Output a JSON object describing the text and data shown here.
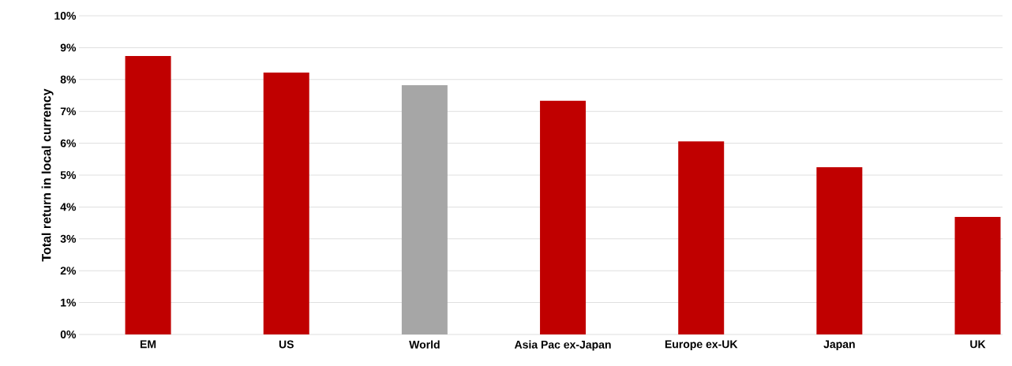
{
  "chart_data": {
    "type": "bar",
    "ylabel": "Total return in local currency",
    "categories": [
      "EM",
      "US",
      "World",
      "Asia Pac ex-Japan",
      "Europe ex-UK",
      "Japan",
      "UK"
    ],
    "values": [
      8.74,
      8.22,
      7.82,
      7.33,
      6.06,
      5.25,
      3.69
    ],
    "colors": [
      "#c00000",
      "#c00000",
      "#a6a6a6",
      "#c00000",
      "#c00000",
      "#c00000",
      "#c00000"
    ],
    "ylim": [
      0,
      10
    ],
    "yticks": [
      {
        "value": 0,
        "label": "0%"
      },
      {
        "value": 1,
        "label": "1%"
      },
      {
        "value": 2,
        "label": "2%"
      },
      {
        "value": 3,
        "label": "3%"
      },
      {
        "value": 4,
        "label": "4%"
      },
      {
        "value": 5,
        "label": "5%"
      },
      {
        "value": 6,
        "label": "6%"
      },
      {
        "value": 7,
        "label": "7%"
      },
      {
        "value": 8,
        "label": "8%"
      },
      {
        "value": 9,
        "label": "9%"
      },
      {
        "value": 10,
        "label": "10%"
      }
    ],
    "grid": "y"
  }
}
